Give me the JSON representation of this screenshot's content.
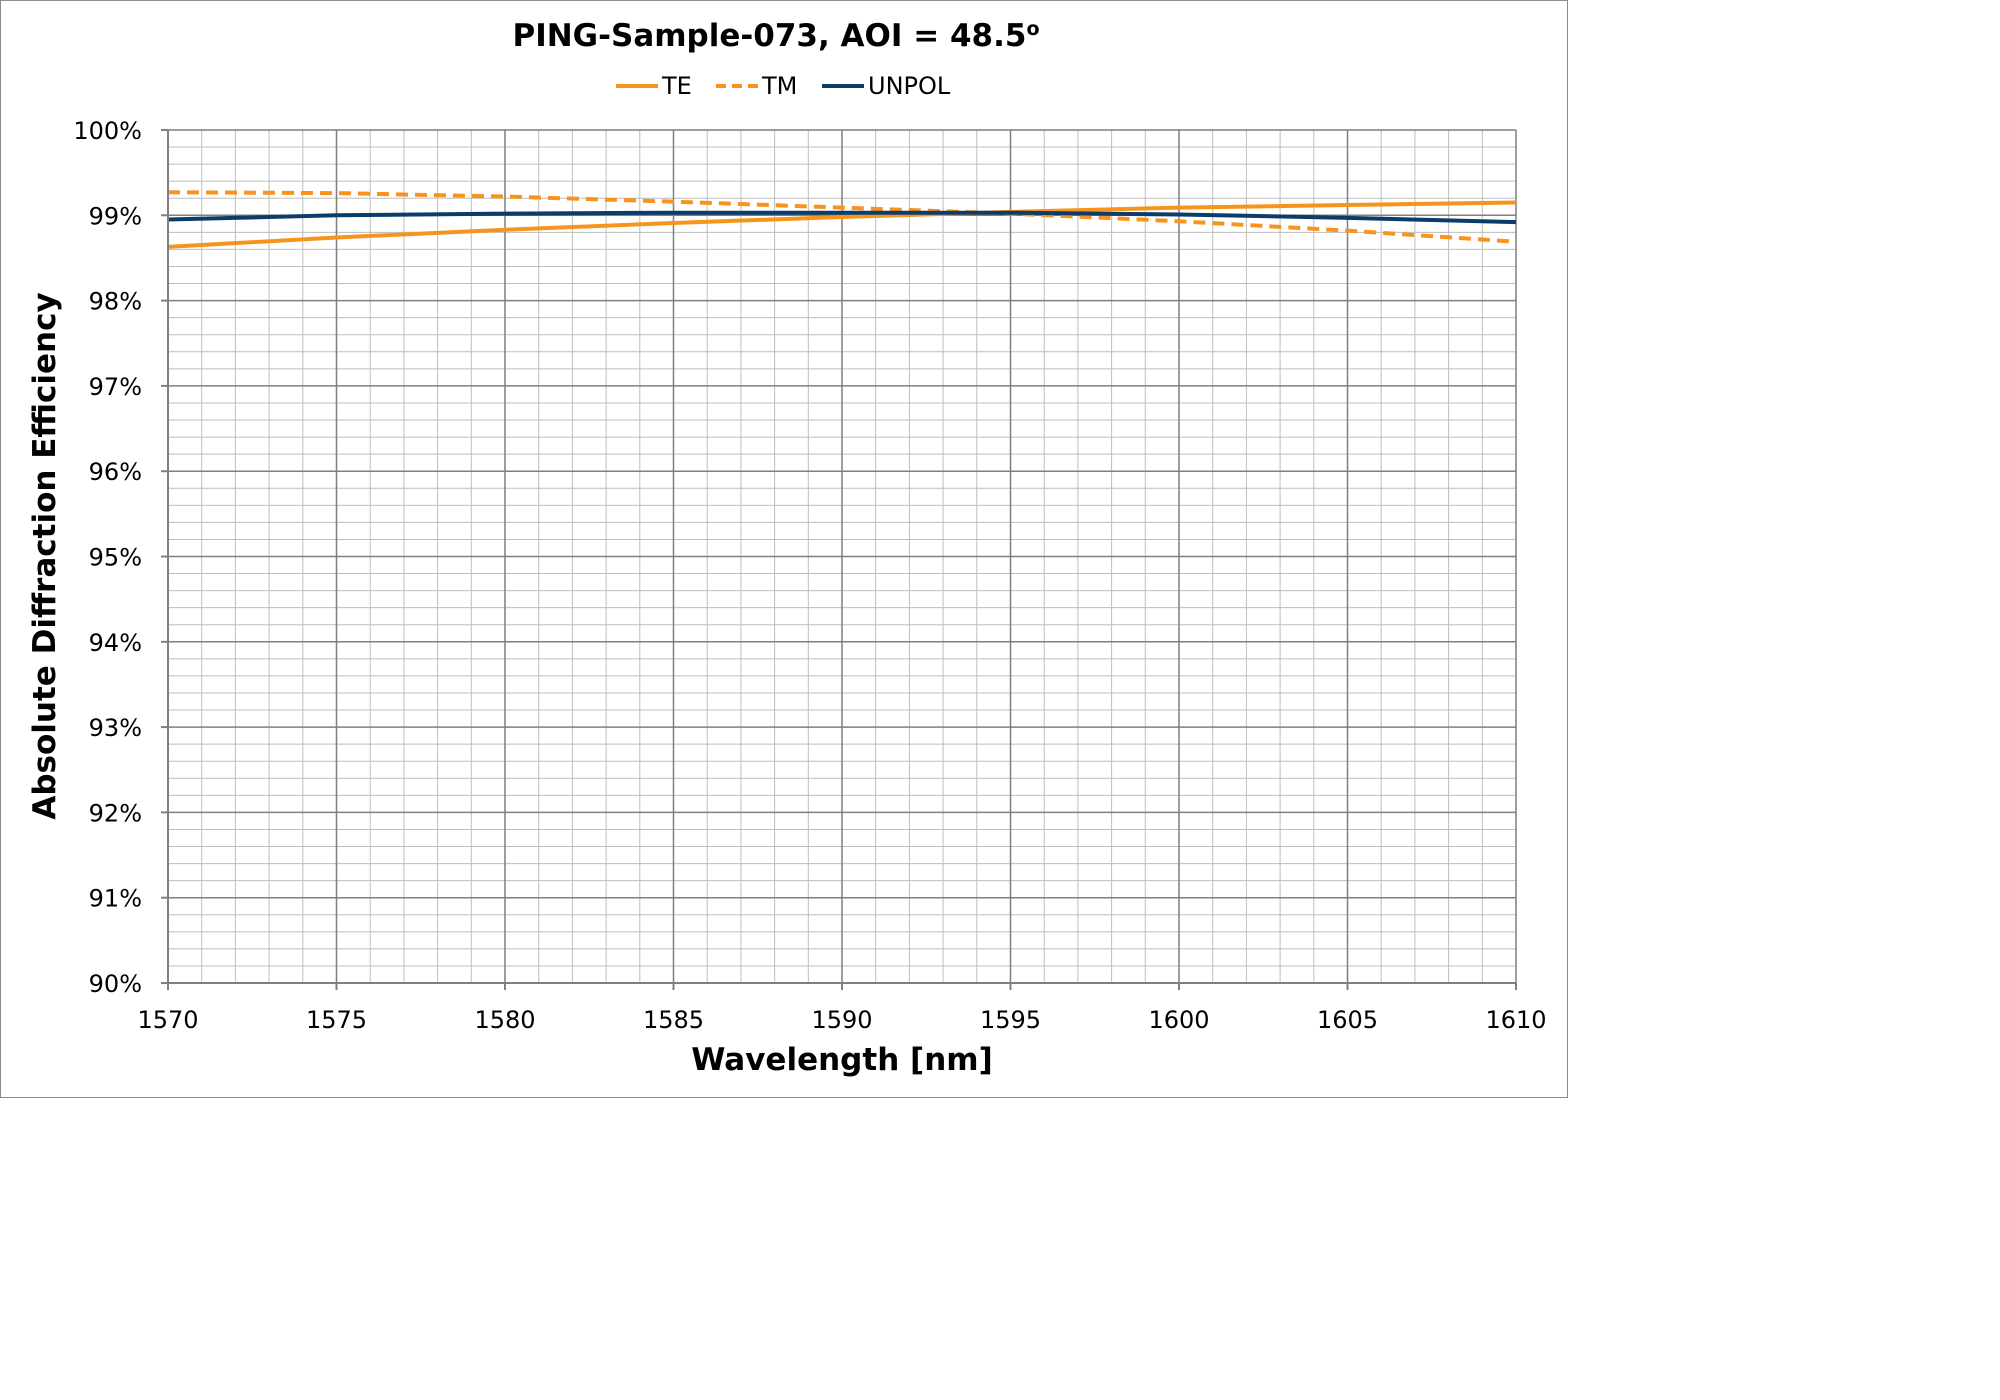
{
  "chart_data": {
    "type": "line",
    "title": "PING-Sample-073, AOI = 48.5",
    "title_superscript": "o",
    "xlabel": "Wavelength [nm]",
    "ylabel": "Absolute Diffraction Efficiency",
    "xlim": [
      1570,
      1610
    ],
    "ylim": [
      90,
      100
    ],
    "x_ticks": [
      1570,
      1575,
      1580,
      1585,
      1590,
      1595,
      1600,
      1605,
      1610
    ],
    "x_tick_labels": [
      "1570",
      "1575",
      "1580",
      "1585",
      "1590",
      "1595",
      "1600",
      "1605",
      "1610"
    ],
    "y_ticks": [
      90,
      91,
      92,
      93,
      94,
      95,
      96,
      97,
      98,
      99,
      100
    ],
    "y_tick_labels": [
      "90%",
      "91%",
      "92%",
      "93%",
      "94%",
      "95%",
      "96%",
      "97%",
      "98%",
      "99%",
      "100%"
    ],
    "grid": true,
    "legend_position": "top-center",
    "x": [
      1570,
      1575,
      1580,
      1585,
      1590,
      1595,
      1600,
      1605,
      1610
    ],
    "series": [
      {
        "name": "TE",
        "color": "#F7941D",
        "dash": "solid",
        "values": [
          98.63,
          98.74,
          98.83,
          98.91,
          98.98,
          99.04,
          99.09,
          99.12,
          99.15
        ]
      },
      {
        "name": "TM",
        "color": "#F7941D",
        "dash": "dashed",
        "values": [
          99.27,
          99.26,
          99.22,
          99.16,
          99.09,
          99.02,
          98.93,
          98.82,
          98.69
        ]
      },
      {
        "name": "UNPOL",
        "color": "#0B3C6B",
        "dash": "solid",
        "values": [
          98.95,
          99.0,
          99.02,
          99.03,
          99.03,
          99.03,
          99.01,
          98.97,
          98.92
        ]
      }
    ]
  }
}
